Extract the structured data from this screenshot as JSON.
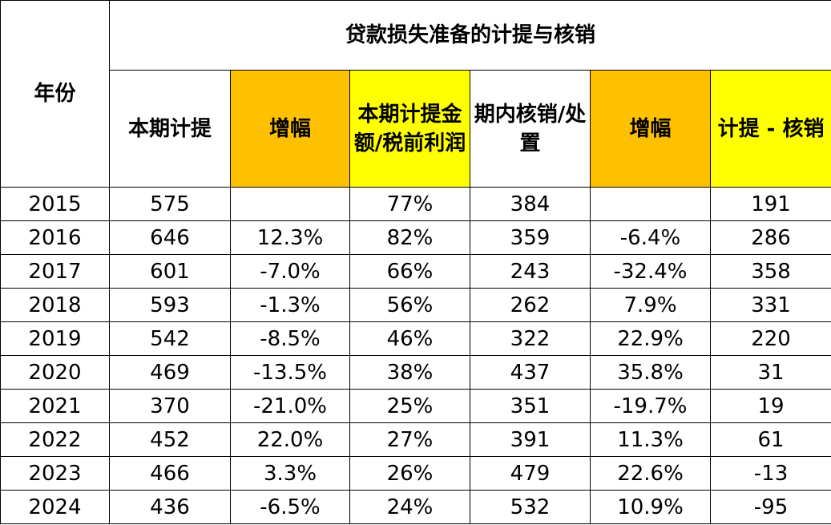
{
  "table": {
    "group_title": "贷款损失准备的计提与核销",
    "headers": {
      "year": "年份",
      "provision": "本期计提",
      "provision_growth": "增幅",
      "provision_ratio": "本期计提金额/税前利润",
      "writeoff": "期内核销/处置",
      "writeoff_growth": "增幅",
      "net": "计提 - 核销"
    },
    "header_colors": {
      "orange": "#ffc000",
      "yellow": "#ffff00"
    },
    "rows": [
      {
        "year": "2015",
        "provision": "575",
        "provision_growth": "",
        "provision_ratio": "77%",
        "writeoff": "384",
        "writeoff_growth": "",
        "net": "191"
      },
      {
        "year": "2016",
        "provision": "646",
        "provision_growth": "12.3%",
        "provision_ratio": "82%",
        "writeoff": "359",
        "writeoff_growth": "-6.4%",
        "net": "286"
      },
      {
        "year": "2017",
        "provision": "601",
        "provision_growth": "-7.0%",
        "provision_ratio": "66%",
        "writeoff": "243",
        "writeoff_growth": "-32.4%",
        "net": "358"
      },
      {
        "year": "2018",
        "provision": "593",
        "provision_growth": "-1.3%",
        "provision_ratio": "56%",
        "writeoff": "262",
        "writeoff_growth": "7.9%",
        "net": "331"
      },
      {
        "year": "2019",
        "provision": "542",
        "provision_growth": "-8.5%",
        "provision_ratio": "46%",
        "writeoff": "322",
        "writeoff_growth": "22.9%",
        "net": "220"
      },
      {
        "year": "2020",
        "provision": "469",
        "provision_growth": "-13.5%",
        "provision_ratio": "38%",
        "writeoff": "437",
        "writeoff_growth": "35.8%",
        "net": "31"
      },
      {
        "year": "2021",
        "provision": "370",
        "provision_growth": "-21.0%",
        "provision_ratio": "25%",
        "writeoff": "351",
        "writeoff_growth": "-19.7%",
        "net": "19"
      },
      {
        "year": "2022",
        "provision": "452",
        "provision_growth": "22.0%",
        "provision_ratio": "27%",
        "writeoff": "391",
        "writeoff_growth": "11.3%",
        "net": "61"
      },
      {
        "year": "2023",
        "provision": "466",
        "provision_growth": "3.3%",
        "provision_ratio": "26%",
        "writeoff": "479",
        "writeoff_growth": "22.6%",
        "net": "-13"
      },
      {
        "year": "2024",
        "provision": "436",
        "provision_growth": "-6.5%",
        "provision_ratio": "24%",
        "writeoff": "532",
        "writeoff_growth": "10.9%",
        "net": "-95"
      }
    ]
  }
}
